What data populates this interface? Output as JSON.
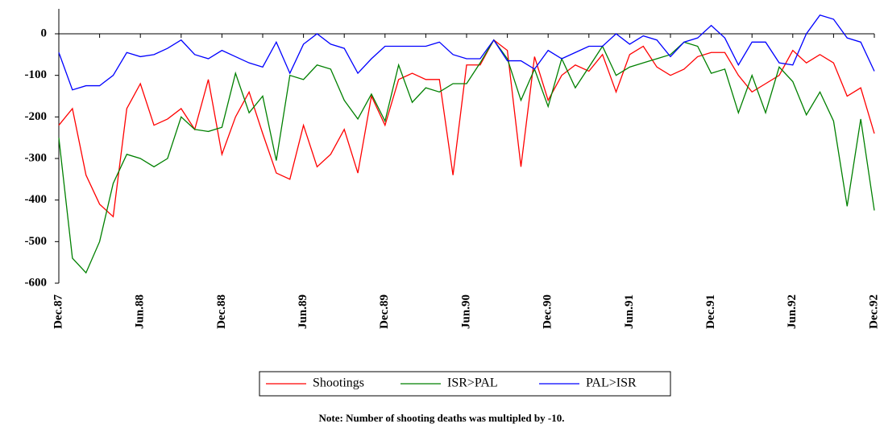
{
  "chart_data": {
    "type": "line",
    "categories": [
      "Dec.87",
      null,
      null,
      null,
      null,
      null,
      "Jun.88",
      null,
      null,
      null,
      null,
      null,
      "Dec.88",
      null,
      null,
      null,
      null,
      null,
      "Jun.89",
      null,
      null,
      null,
      null,
      null,
      "Dec.89",
      null,
      null,
      null,
      null,
      null,
      "Jun.90",
      null,
      null,
      null,
      null,
      null,
      "Dec.90",
      null,
      null,
      null,
      null,
      null,
      "Jun.91",
      null,
      null,
      null,
      null,
      null,
      "Dec.91",
      null,
      null,
      null,
      null,
      null,
      "Jun.92",
      null,
      null,
      null,
      null,
      null,
      "Dec.92"
    ],
    "series": [
      {
        "name": "Shootings",
        "color": "#ff0000",
        "values": [
          -220,
          -180,
          -340,
          -410,
          -440,
          -180,
          -120,
          -220,
          -205,
          -180,
          -230,
          -110,
          -290,
          -200,
          -140,
          -240,
          -335,
          -350,
          -220,
          -320,
          -290,
          -230,
          -335,
          -150,
          -220,
          -110,
          -95,
          -110,
          -110,
          -340,
          -75,
          -75,
          -15,
          -40,
          -320,
          -55,
          -160,
          -100,
          -75,
          -90,
          -50,
          -140,
          -50,
          -30,
          -80,
          -100,
          -85,
          -55,
          -45,
          -45,
          -100,
          -140,
          -120,
          -100,
          -40,
          -70,
          -50,
          -70,
          -150,
          -130,
          -240
        ]
      },
      {
        "name": "ISR>PAL",
        "color": "#008000",
        "values": [
          -250,
          -540,
          -575,
          -500,
          -360,
          -290,
          -300,
          -320,
          -300,
          -200,
          -230,
          -235,
          -225,
          -95,
          -190,
          -150,
          -305,
          -100,
          -110,
          -75,
          -85,
          -160,
          -205,
          -145,
          -210,
          -75,
          -165,
          -130,
          -140,
          -120,
          -120,
          -70,
          -15,
          -60,
          -160,
          -85,
          -175,
          -60,
          -130,
          -80,
          -30,
          -100,
          -80,
          -70,
          -60,
          -50,
          -20,
          -30,
          -95,
          -85,
          -190,
          -100,
          -190,
          -80,
          -115,
          -195,
          -140,
          -210,
          -415,
          -205,
          -425
        ]
      },
      {
        "name": "PAL>ISR",
        "color": "#0000ff",
        "values": [
          -45,
          -135,
          -125,
          -125,
          -100,
          -45,
          -55,
          -50,
          -35,
          -15,
          -50,
          -60,
          -40,
          -55,
          -70,
          -80,
          -20,
          -95,
          -25,
          0,
          -25,
          -35,
          -95,
          -60,
          -30,
          -30,
          -30,
          -30,
          -20,
          -50,
          -60,
          -60,
          -15,
          -65,
          -65,
          -85,
          -40,
          -60,
          -45,
          -30,
          -30,
          0,
          -25,
          -5,
          -15,
          -55,
          -20,
          -10,
          20,
          -10,
          -75,
          -20,
          -20,
          -70,
          -75,
          0,
          45,
          35,
          -10,
          -20,
          -90
        ]
      }
    ],
    "ylim": [
      -600,
      60
    ],
    "yticks": [
      -600,
      -500,
      -400,
      -300,
      -200,
      -100,
      0
    ],
    "note": "Note:  Number of shooting deaths was multipled by -10."
  }
}
